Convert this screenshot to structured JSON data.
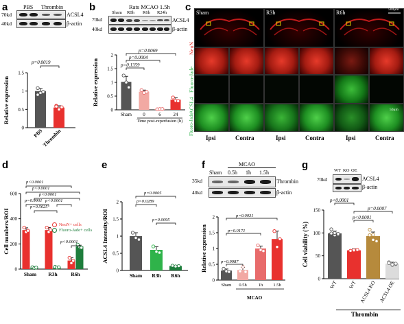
{
  "panels": {
    "a": {
      "letter": "a",
      "blot_header": [
        "PBS",
        "Thrombin"
      ],
      "mw": [
        "70kd",
        "40kd"
      ],
      "proteins": [
        "ACSL4",
        "β-actin"
      ],
      "pvalue": "p=0.0019"
    },
    "b": {
      "letter": "b",
      "title": "Rats MCAO 1.5h",
      "lanes": [
        "Sham",
        "R0h",
        "R6h",
        "R24h"
      ],
      "mw": [
        "70kd",
        "40kd"
      ],
      "proteins": [
        "ACSL4",
        "β-actin"
      ],
      "pvalues": [
        "p=0.0069",
        "p=0.0004",
        "p=0.1359"
      ]
    },
    "c": {
      "letter": "c",
      "columns": [
        "Sham",
        "R3h",
        "R6h"
      ],
      "scale_top": "500μm",
      "scale_bottom": "50μm",
      "row_labels": [
        "NeuN",
        "Fluoro-Jade",
        "ACSL4",
        "Fluoro-Jade"
      ],
      "bottom_labels": [
        "Ipsi",
        "Contra",
        "Ipsi",
        "Contra",
        "Ipsi",
        "Contra"
      ]
    },
    "d": {
      "letter": "d",
      "pvalues": [
        "p<0.0001",
        "p<0.0001",
        "p<0.0001",
        "p=0.9901",
        "p<0.0001",
        "p=0.5625",
        "p<0.0001"
      ],
      "legend": [
        "NeuN+ cells",
        "Fluoro-Jade+ cells"
      ]
    },
    "e": {
      "letter": "e",
      "pvalues": [
        "p=0.0005",
        "p=0.0289",
        "p=0.0095"
      ]
    },
    "f": {
      "letter": "f",
      "group": "MCAO",
      "lanes": [
        "Sham",
        "0.5h",
        "1h",
        "1.5h"
      ],
      "mw": [
        "35kd",
        "40kd"
      ],
      "proteins": [
        "Thrombin",
        "β-actin"
      ],
      "pvalues": [
        "p=0.0031",
        "p=0.0171",
        "p=0.9987"
      ],
      "xgroup": "MCAO"
    },
    "g": {
      "letter": "g",
      "blot_header": [
        "WT",
        "KO",
        "OE"
      ],
      "mw": [
        "70kd"
      ],
      "proteins": [
        "ACSL4",
        "β-actin"
      ],
      "pvalues": [
        "p<0.0001",
        "p=0.0007",
        "p<0.0001"
      ],
      "xgroup": "Thrombin"
    }
  },
  "chart_data": [
    {
      "id": "a",
      "type": "bar",
      "categories": [
        "PBS",
        "Thrombin"
      ],
      "values": [
        1.0,
        0.55
      ],
      "errors": [
        0.07,
        0.05
      ],
      "points": [
        [
          1.08,
          0.95,
          0.98,
          0.9
        ],
        [
          0.6,
          0.5,
          0.56,
          0.58
        ]
      ],
      "colors": [
        "#555555",
        "#e8312e"
      ],
      "ylabel": "Relative expression",
      "ylim": [
        0,
        1.5
      ],
      "yticks": [
        0,
        0.5,
        1.0,
        1.5
      ]
    },
    {
      "id": "b",
      "type": "bar",
      "categories": [
        "Sham",
        "0",
        "6",
        "24"
      ],
      "values": [
        1.02,
        0.66,
        0.03,
        0.37
      ],
      "errors": [
        0.2,
        0.06,
        0.01,
        0.07
      ],
      "points": [
        [
          1.25,
          1.0,
          0.82
        ],
        [
          0.72,
          0.62,
          0.66
        ],
        [
          0.02,
          0.03,
          0.03
        ],
        [
          0.45,
          0.33,
          0.32
        ]
      ],
      "colors": [
        "#555555",
        "#f2a9a3",
        "#f2a9a3",
        "#e8312e"
      ],
      "xlabel": "Time post-reperfusion (h)",
      "ylabel": "Relative expression",
      "ylim": [
        0,
        2.0
      ],
      "yticks": [
        0,
        0.5,
        1.0,
        1.5,
        2.0
      ]
    },
    {
      "id": "d",
      "type": "bar",
      "categories": [
        "Sham",
        "R3h",
        "R6h"
      ],
      "series": [
        {
          "name": "NeuN+ cells",
          "color": "#e8312e",
          "values": [
            310,
            310,
            68
          ],
          "errors": [
            18,
            20,
            22
          ],
          "points": [
            [
              330,
              295,
              305
            ],
            [
              330,
              295,
              310
            ],
            [
              90,
              48,
              66
            ]
          ]
        },
        {
          "name": "Fluoro-Jade+ cells",
          "color": "#1e7d3c",
          "values": [
            12,
            15,
            180
          ],
          "errors": [
            4,
            4,
            10
          ],
          "points": [
            [
              15,
              9,
              12
            ],
            [
              18,
              12,
              15
            ],
            [
              195,
              175,
              170
            ]
          ]
        }
      ],
      "ylabel": "Cell numbers/ROI",
      "ylim": [
        0,
        600
      ],
      "yticks": [
        0,
        200,
        400,
        600
      ]
    },
    {
      "id": "e",
      "type": "bar",
      "categories": [
        "Sham",
        "R3h",
        "R6h"
      ],
      "values": [
        1.0,
        0.6,
        0.13
      ],
      "errors": [
        0.1,
        0.09,
        0.02
      ],
      "points": [
        [
          1.1,
          0.95,
          0.9
        ],
        [
          0.7,
          0.55,
          0.52
        ],
        [
          0.14,
          0.12,
          0.13
        ]
      ],
      "colors": [
        "#555555",
        "#2fb34a",
        "#1e7d3c"
      ],
      "ylabel": "ACSL4 Intensity/ROI",
      "ylim": [
        0,
        2.0
      ],
      "yticks": [
        0,
        0.5,
        1.0,
        1.5,
        2.0
      ]
    },
    {
      "id": "f",
      "type": "bar",
      "categories": [
        "Sham",
        "0.5h",
        "1h",
        "1.5h"
      ],
      "values": [
        0.3,
        0.32,
        1.0,
        1.3
      ],
      "errors": [
        0.05,
        0.08,
        0.08,
        0.25
      ],
      "points": [
        [
          0.36,
          0.28,
          0.26
        ],
        [
          0.28,
          0.42,
          0.26
        ],
        [
          1.1,
          0.95,
          0.92
        ],
        [
          1.55,
          1.05,
          1.3
        ]
      ],
      "colors": [
        "#555555",
        "#f2a9a3",
        "#e86b6b",
        "#e8312e"
      ],
      "ylabel": "Relative expression",
      "ylim": [
        0,
        2.0
      ],
      "yticks": [
        0,
        0.5,
        1.0,
        1.5,
        2.0
      ]
    },
    {
      "id": "g",
      "type": "bar",
      "categories": [
        "WT",
        "WT",
        "ACSL4 KO",
        "ACSL4 OE"
      ],
      "values": [
        99,
        62,
        93,
        33
      ],
      "errors": [
        5,
        3,
        9,
        3
      ],
      "points": [
        [
          108,
          95,
          96,
          99,
          100,
          98
        ],
        [
          60,
          62,
          63,
          61
        ],
        [
          107,
          85,
          82,
          95,
          96
        ],
        [
          36,
          30,
          32,
          34,
          31,
          33
        ]
      ],
      "colors": [
        "#555555",
        "#e8312e",
        "#b68a3c",
        "#dcdcdc"
      ],
      "ylabel": "Cell viability (%)",
      "ylim": [
        0,
        150
      ],
      "yticks": [
        0,
        50,
        100,
        150
      ]
    }
  ]
}
